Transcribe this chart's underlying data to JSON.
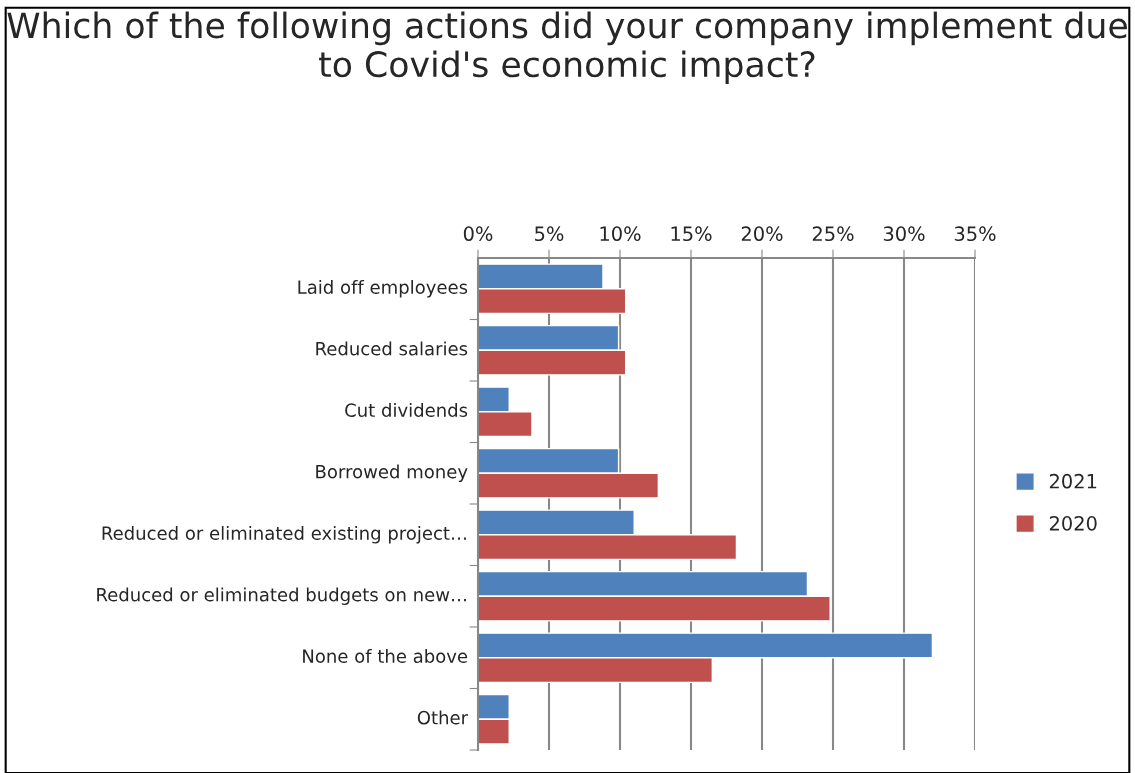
{
  "chart_data": {
    "type": "bar",
    "orientation": "horizontal",
    "title": "Which of the following actions did your company implement due to Covid's economic impact?",
    "categories": [
      "Laid off employees",
      "Reduced salaries",
      "Cut dividends",
      "Borrowed money",
      "Reduced or eliminated existing project…",
      "Reduced or eliminated budgets on new…",
      "None of the above",
      "Other"
    ],
    "series": [
      {
        "name": "2021",
        "color": "#4f81bd",
        "values": [
          8.8,
          9.9,
          2.2,
          9.9,
          11.0,
          23.2,
          32.0,
          2.2
        ]
      },
      {
        "name": "2020",
        "color": "#c0504d",
        "values": [
          10.4,
          10.4,
          3.8,
          12.7,
          18.2,
          24.8,
          16.5,
          2.2
        ]
      }
    ],
    "xlim": [
      0,
      35
    ],
    "xticks": [
      {
        "value": 0,
        "label": "0%"
      },
      {
        "value": 5,
        "label": "5%"
      },
      {
        "value": 10,
        "label": "10%"
      },
      {
        "value": 15,
        "label": "15%"
      },
      {
        "value": 20,
        "label": "20%"
      },
      {
        "value": 25,
        "label": "25%"
      },
      {
        "value": 30,
        "label": "30%"
      },
      {
        "value": 35,
        "label": "35%"
      }
    ],
    "grid": "x",
    "legend": "right"
  }
}
